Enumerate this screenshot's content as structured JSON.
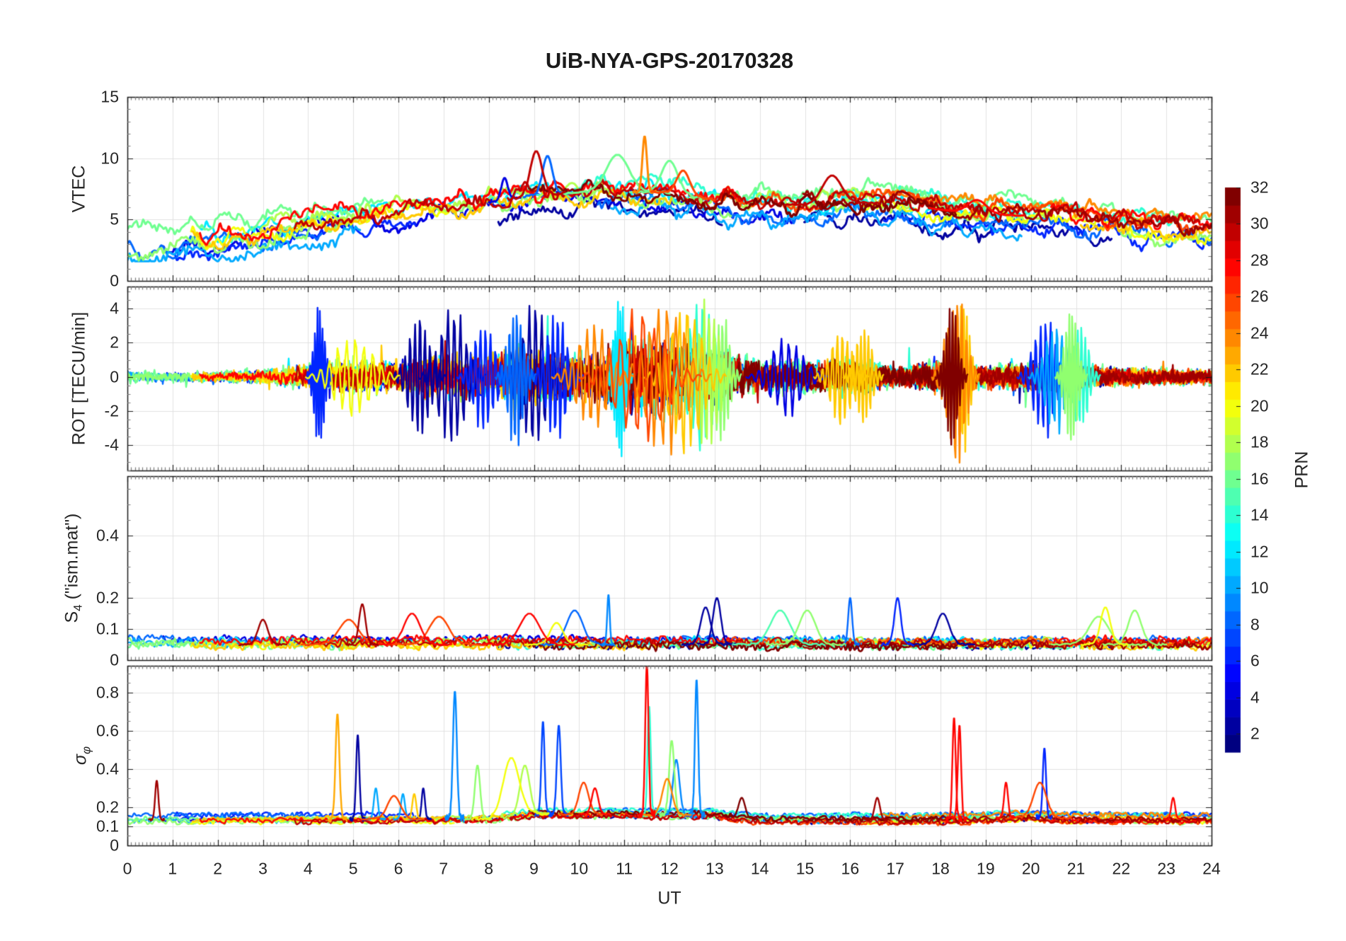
{
  "colors": {
    "text": "#262626",
    "axis": "#1a1a1a",
    "grid": "#e2e2e2",
    "minor_tick": "#7a7a7a",
    "background": "#ffffff"
  },
  "chart_data": {
    "type": "line",
    "title": "UiB-NYA-GPS-20170328",
    "x_axis": {
      "label": "UT",
      "min": 0,
      "max": 24,
      "major_step": 1,
      "minor_per_hour": 12,
      "tick_labels": [
        0,
        1,
        2,
        3,
        4,
        5,
        6,
        7,
        8,
        9,
        10,
        11,
        12,
        13,
        14,
        15,
        16,
        17,
        18,
        19,
        20,
        21,
        22,
        23,
        24
      ]
    },
    "colorbar": {
      "label": "PRN",
      "min": 1,
      "max": 32,
      "segments": 32,
      "colormap": "jet",
      "ticks": [
        2,
        4,
        6,
        8,
        10,
        12,
        14,
        16,
        18,
        20,
        22,
        24,
        26,
        28,
        30,
        32
      ]
    },
    "panels": [
      {
        "key": "vtec",
        "ylabel": "VTEC",
        "ylim": [
          0,
          15
        ],
        "yticks": [
          0,
          5,
          10,
          15
        ],
        "yminor_step": 1,
        "envelope": [
          [
            0,
            3.2
          ],
          [
            1,
            3.4
          ],
          [
            2,
            3.7
          ],
          [
            3,
            4.1
          ],
          [
            4,
            4.6
          ],
          [
            5,
            5.2
          ],
          [
            6,
            5.6
          ],
          [
            7,
            6.1
          ],
          [
            8,
            6.4
          ],
          [
            9,
            7.0
          ],
          [
            10,
            7.2
          ],
          [
            11,
            7.3
          ],
          [
            12,
            7.2
          ],
          [
            13,
            6.6
          ],
          [
            14,
            6.2
          ],
          [
            15,
            6.2
          ],
          [
            16,
            6.4
          ],
          [
            17,
            6.3
          ],
          [
            18,
            5.8
          ],
          [
            19,
            5.4
          ],
          [
            20,
            5.3
          ],
          [
            21,
            5.2
          ],
          [
            22,
            4.6
          ],
          [
            23,
            4.2
          ],
          [
            24,
            3.9
          ]
        ],
        "events": [
          {
            "t": 8.35,
            "prn": 4,
            "v": 8.4,
            "w": 0.1
          },
          {
            "t": 9.05,
            "prn": 30,
            "v": 10.6,
            "w": 0.18
          },
          {
            "t": 9.3,
            "prn": 8,
            "v": 10.2,
            "w": 0.15
          },
          {
            "t": 10.85,
            "prn": 16,
            "v": 10.3,
            "w": 0.35
          },
          {
            "t": 11.45,
            "prn": 24,
            "v": 11.8,
            "w": 0.07
          },
          {
            "t": 12.0,
            "prn": 16,
            "v": 9.8,
            "w": 0.25
          },
          {
            "t": 12.3,
            "prn": 26,
            "v": 9.0,
            "w": 0.2
          },
          {
            "t": 15.6,
            "prn": 30,
            "v": 8.6,
            "w": 0.3
          },
          {
            "t": 18.8,
            "prn": 28,
            "v": 6.6,
            "w": 0.3
          }
        ]
      },
      {
        "key": "rot",
        "ylabel": "ROT [TECU/min]",
        "ylim": [
          -5.5,
          5.3
        ],
        "yticks": [
          -4,
          -2,
          0,
          2,
          4
        ],
        "yminor_step": 0.5,
        "envelope": [
          [
            0,
            0.35
          ],
          [
            1,
            0.3
          ],
          [
            2,
            0.3
          ],
          [
            3,
            0.45
          ],
          [
            4,
            0.7
          ],
          [
            5,
            0.9
          ],
          [
            6,
            1.0
          ],
          [
            7,
            1.3
          ],
          [
            8,
            1.3
          ],
          [
            9,
            1.6
          ],
          [
            10,
            1.3
          ],
          [
            11,
            2.0
          ],
          [
            12,
            2.2
          ],
          [
            13,
            1.5
          ],
          [
            14,
            0.9
          ],
          [
            15,
            0.9
          ],
          [
            16,
            1.0
          ],
          [
            17,
            0.55
          ],
          [
            18,
            0.9
          ],
          [
            19,
            0.6
          ],
          [
            20,
            0.9
          ],
          [
            21,
            0.7
          ],
          [
            22,
            0.5
          ],
          [
            23,
            0.45
          ],
          [
            24,
            0.45
          ]
        ],
        "events": [
          {
            "t": 4.25,
            "prn": 6,
            "v": 4.4,
            "w": 0.1
          },
          {
            "t": 5.0,
            "prn": 20,
            "v": 2.8,
            "w": 0.35
          },
          {
            "t": 6.45,
            "prn": 2,
            "v": 3.9,
            "w": 0.2
          },
          {
            "t": 7.2,
            "prn": 2,
            "v": 4.5,
            "w": 0.25
          },
          {
            "t": 7.9,
            "prn": 6,
            "v": 3.6,
            "w": 0.2
          },
          {
            "t": 8.6,
            "prn": 8,
            "v": 4.6,
            "w": 0.15
          },
          {
            "t": 9.0,
            "prn": 2,
            "v": 4.8,
            "w": 0.25
          },
          {
            "t": 9.5,
            "prn": 6,
            "v": 4.0,
            "w": 0.2
          },
          {
            "t": 10.3,
            "prn": 24,
            "v": 3.4,
            "w": 0.3
          },
          {
            "t": 10.9,
            "prn": 12,
            "v": 5.3,
            "w": 0.1
          },
          {
            "t": 11.35,
            "prn": 26,
            "v": 4.3,
            "w": 0.45
          },
          {
            "t": 11.9,
            "prn": 24,
            "v": 5.0,
            "w": 0.35
          },
          {
            "t": 12.35,
            "prn": 22,
            "v": 5.0,
            "w": 0.3
          },
          {
            "t": 12.7,
            "prn": 14,
            "v": 4.9,
            "w": 0.25
          },
          {
            "t": 12.85,
            "prn": 18,
            "v": 4.9,
            "w": 0.2
          },
          {
            "t": 13.15,
            "prn": 17,
            "v": 4.3,
            "w": 0.15
          },
          {
            "t": 14.6,
            "prn": 4,
            "v": 2.6,
            "w": 0.3
          },
          {
            "t": 15.8,
            "prn": 22,
            "v": 3.1,
            "w": 0.2
          },
          {
            "t": 16.3,
            "prn": 22,
            "v": 3.3,
            "w": 0.15
          },
          {
            "t": 18.25,
            "prn": 32,
            "v": 4.5,
            "w": 0.12
          },
          {
            "t": 18.35,
            "prn": 24,
            "v": 5.5,
            "w": 0.18
          },
          {
            "t": 18.5,
            "prn": 22,
            "v": 4.8,
            "w": 0.12
          },
          {
            "t": 20.3,
            "prn": 6,
            "v": 3.9,
            "w": 0.2
          },
          {
            "t": 20.55,
            "prn": 10,
            "v": 3.6,
            "w": 0.2
          },
          {
            "t": 20.9,
            "prn": 17,
            "v": 4.3,
            "w": 0.12
          },
          {
            "t": 21.1,
            "prn": 14,
            "v": 3.4,
            "w": 0.15
          }
        ]
      },
      {
        "key": "s4",
        "ylabel_main": "S",
        "ylabel_sub": "4",
        "ylabel_rest": " (\"ism.mat\")",
        "ylim": [
          0,
          0.59
        ],
        "yticks": [
          0,
          0.1,
          0.2,
          0.4
        ],
        "yminor_step": 0.05,
        "envelope": [
          [
            0,
            0.055
          ],
          [
            4,
            0.058
          ],
          [
            5,
            0.062
          ],
          [
            8,
            0.06
          ],
          [
            9,
            0.062
          ],
          [
            13,
            0.058
          ],
          [
            24,
            0.055
          ]
        ],
        "events": [
          {
            "t": 3.0,
            "prn": 31,
            "v": 0.13,
            "w": 0.15
          },
          {
            "t": 4.9,
            "prn": 26,
            "v": 0.13,
            "w": 0.3
          },
          {
            "t": 5.2,
            "prn": 31,
            "v": 0.18,
            "w": 0.1
          },
          {
            "t": 6.3,
            "prn": 28,
            "v": 0.15,
            "w": 0.25
          },
          {
            "t": 6.9,
            "prn": 26,
            "v": 0.14,
            "w": 0.3
          },
          {
            "t": 8.9,
            "prn": 28,
            "v": 0.15,
            "w": 0.3
          },
          {
            "t": 9.5,
            "prn": 20,
            "v": 0.12,
            "w": 0.2
          },
          {
            "t": 9.9,
            "prn": 8,
            "v": 0.16,
            "w": 0.25
          },
          {
            "t": 10.65,
            "prn": 9,
            "v": 0.21,
            "w": 0.04
          },
          {
            "t": 12.8,
            "prn": 2,
            "v": 0.17,
            "w": 0.15
          },
          {
            "t": 13.05,
            "prn": 2,
            "v": 0.2,
            "w": 0.12
          },
          {
            "t": 14.45,
            "prn": 15,
            "v": 0.16,
            "w": 0.3
          },
          {
            "t": 15.05,
            "prn": 17,
            "v": 0.16,
            "w": 0.25
          },
          {
            "t": 16.0,
            "prn": 8,
            "v": 0.2,
            "w": 0.06
          },
          {
            "t": 17.05,
            "prn": 6,
            "v": 0.2,
            "w": 0.1
          },
          {
            "t": 18.05,
            "prn": 2,
            "v": 0.15,
            "w": 0.2
          },
          {
            "t": 21.5,
            "prn": 17,
            "v": 0.14,
            "w": 0.3
          },
          {
            "t": 21.65,
            "prn": 20,
            "v": 0.17,
            "w": 0.15
          },
          {
            "t": 22.3,
            "prn": 17,
            "v": 0.16,
            "w": 0.2
          }
        ]
      },
      {
        "key": "sigma_phi",
        "ylabel_main": "σ",
        "ylabel_sub": "φ",
        "ylim": [
          0,
          0.94
        ],
        "yticks": [
          0,
          0.1,
          0.2,
          0.4,
          0.6,
          0.8
        ],
        "yminor_step": 0.05,
        "envelope": [
          [
            0,
            0.135
          ],
          [
            8,
            0.14
          ],
          [
            9,
            0.165
          ],
          [
            13,
            0.16
          ],
          [
            14,
            0.135
          ],
          [
            18,
            0.135
          ],
          [
            20,
            0.15
          ],
          [
            21,
            0.14
          ],
          [
            24,
            0.135
          ]
        ],
        "events": [
          {
            "t": 0.65,
            "prn": 31,
            "v": 0.34,
            "w": 0.05
          },
          {
            "t": 4.65,
            "prn": 23,
            "v": 0.69,
            "w": 0.06
          },
          {
            "t": 5.1,
            "prn": 2,
            "v": 0.58,
            "w": 0.05
          },
          {
            "t": 5.5,
            "prn": 10,
            "v": 0.3,
            "w": 0.06
          },
          {
            "t": 5.9,
            "prn": 26,
            "v": 0.26,
            "w": 0.2
          },
          {
            "t": 6.1,
            "prn": 10,
            "v": 0.27,
            "w": 0.06
          },
          {
            "t": 6.35,
            "prn": 22,
            "v": 0.27,
            "w": 0.06
          },
          {
            "t": 6.55,
            "prn": 2,
            "v": 0.3,
            "w": 0.05
          },
          {
            "t": 7.25,
            "prn": 9,
            "v": 0.81,
            "w": 0.06
          },
          {
            "t": 7.75,
            "prn": 17,
            "v": 0.42,
            "w": 0.08
          },
          {
            "t": 8.5,
            "prn": 20,
            "v": 0.46,
            "w": 0.25
          },
          {
            "t": 8.8,
            "prn": 18,
            "v": 0.42,
            "w": 0.15
          },
          {
            "t": 9.2,
            "prn": 7,
            "v": 0.65,
            "w": 0.05
          },
          {
            "t": 9.55,
            "prn": 7,
            "v": 0.63,
            "w": 0.06
          },
          {
            "t": 10.1,
            "prn": 26,
            "v": 0.33,
            "w": 0.15
          },
          {
            "t": 10.35,
            "prn": 28,
            "v": 0.3,
            "w": 0.1
          },
          {
            "t": 11.5,
            "prn": 28,
            "v": 0.95,
            "w": 0.05
          },
          {
            "t": 11.55,
            "prn": 14,
            "v": 0.73,
            "w": 0.05
          },
          {
            "t": 11.95,
            "prn": 24,
            "v": 0.35,
            "w": 0.15
          },
          {
            "t": 12.05,
            "prn": 17,
            "v": 0.55,
            "w": 0.08
          },
          {
            "t": 12.15,
            "prn": 9,
            "v": 0.45,
            "w": 0.1
          },
          {
            "t": 12.6,
            "prn": 9,
            "v": 0.87,
            "w": 0.05
          },
          {
            "t": 13.6,
            "prn": 32,
            "v": 0.25,
            "w": 0.1
          },
          {
            "t": 16.6,
            "prn": 31,
            "v": 0.25,
            "w": 0.08
          },
          {
            "t": 18.3,
            "prn": 28,
            "v": 0.67,
            "w": 0.05
          },
          {
            "t": 18.42,
            "prn": 28,
            "v": 0.63,
            "w": 0.05
          },
          {
            "t": 19.45,
            "prn": 28,
            "v": 0.33,
            "w": 0.06
          },
          {
            "t": 20.2,
            "prn": 26,
            "v": 0.33,
            "w": 0.2
          },
          {
            "t": 20.3,
            "prn": 6,
            "v": 0.51,
            "w": 0.05
          },
          {
            "t": 23.15,
            "prn": 28,
            "v": 0.25,
            "w": 0.06
          }
        ]
      }
    ],
    "gen": {
      "seed": 20170328,
      "samples_per_hour": 60,
      "series_prns": [
        2,
        4,
        6,
        8,
        10,
        12,
        14,
        16,
        17,
        18,
        20,
        22,
        24,
        26,
        28,
        30,
        31,
        32
      ],
      "arcs_per_series": 3,
      "vtec": {
        "spread": 1.3,
        "coarse": 0.85,
        "fine": 0.35
      },
      "s4": {
        "base": 0.05,
        "base_spread": 0.022,
        "noise": 0.012
      },
      "sigma": {
        "spread": 0.02,
        "noise": 0.013
      }
    }
  }
}
